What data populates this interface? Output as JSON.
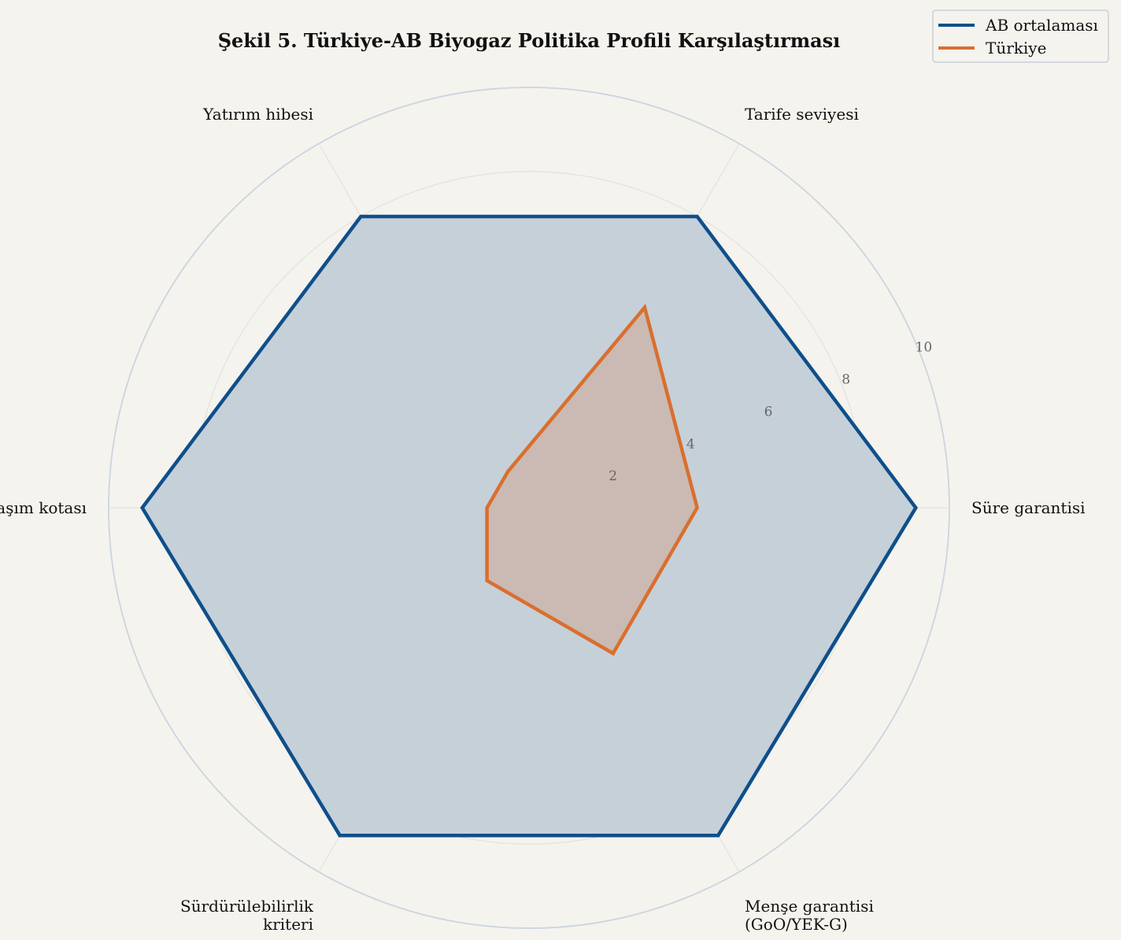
{
  "chart_data": {
    "type": "radar",
    "title": "Şekil 5. Türkiye-AB Biyogaz Politika Profili Karşılaştırması",
    "axes": [
      {
        "lines": [
          "Süre garantisi"
        ]
      },
      {
        "lines": [
          "Tarife seviyesi"
        ]
      },
      {
        "lines": [
          "Yatırım hibesi"
        ]
      },
      {
        "lines": [
          "Ulaşım kotası"
        ]
      },
      {
        "lines": [
          "Sürdürülebilirlik",
          "kriteri"
        ]
      },
      {
        "lines": [
          "Menşe garantisi",
          "(GoO/YEK-G)"
        ]
      }
    ],
    "rlim": [
      0,
      10
    ],
    "ticks": [
      "2",
      "4",
      "6",
      "8",
      "10"
    ],
    "series": [
      {
        "name": "AB ortalaması",
        "color": "#0e4f8b",
        "fill": "#c6d0d9",
        "values": [
          9.2,
          8.0,
          8.0,
          9.2,
          9.0,
          9.0
        ]
      },
      {
        "name": "Türkiye",
        "color": "#d96f2e",
        "fill": "rgba(217,111,46,0.22)",
        "values": [
          4.0,
          5.5,
          1.0,
          1.0,
          2.0,
          4.0
        ]
      }
    ],
    "legend": "top-right",
    "grid": true
  }
}
